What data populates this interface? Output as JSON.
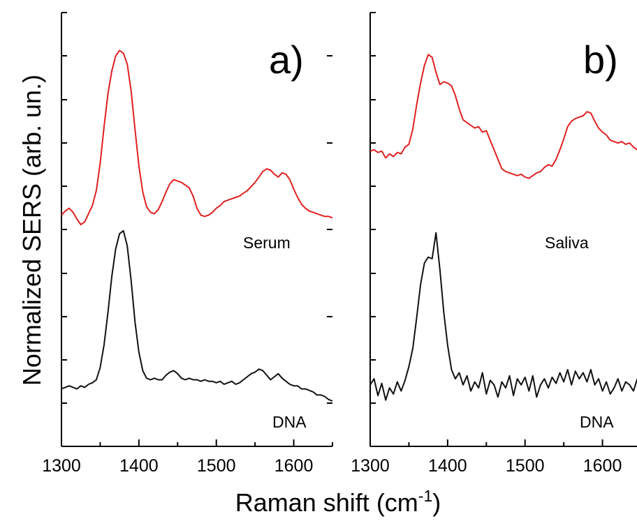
{
  "chart_data": [
    {
      "type": "line",
      "panel_label": "a)",
      "xlim": [
        1300,
        1650
      ],
      "x_ticks": [
        1300,
        1400,
        1500,
        1600
      ],
      "series": [
        {
          "name": "Serum",
          "color": "#e02020",
          "x": [
            1300,
            1305,
            1310,
            1315,
            1320,
            1325,
            1330,
            1335,
            1340,
            1345,
            1350,
            1355,
            1360,
            1365,
            1370,
            1375,
            1380,
            1385,
            1390,
            1395,
            1400,
            1405,
            1410,
            1415,
            1420,
            1425,
            1430,
            1435,
            1440,
            1445,
            1450,
            1455,
            1460,
            1465,
            1470,
            1475,
            1480,
            1485,
            1490,
            1495,
            1500,
            1505,
            1510,
            1515,
            1520,
            1525,
            1530,
            1535,
            1540,
            1545,
            1550,
            1555,
            1560,
            1565,
            1570,
            1575,
            1580,
            1585,
            1590,
            1595,
            1600,
            1605,
            1610,
            1615,
            1620,
            1625,
            1630,
            1635,
            1640,
            1645,
            1650
          ],
          "values": [
            0.07,
            0.1,
            0.12,
            0.09,
            0.04,
            0.0,
            0.02,
            0.08,
            0.14,
            0.25,
            0.45,
            0.72,
            0.96,
            1.13,
            1.24,
            1.28,
            1.26,
            1.18,
            0.98,
            0.7,
            0.43,
            0.24,
            0.13,
            0.09,
            0.08,
            0.11,
            0.17,
            0.24,
            0.3,
            0.33,
            0.32,
            0.31,
            0.29,
            0.27,
            0.21,
            0.12,
            0.07,
            0.06,
            0.07,
            0.09,
            0.12,
            0.14,
            0.17,
            0.18,
            0.19,
            0.2,
            0.21,
            0.23,
            0.25,
            0.28,
            0.31,
            0.35,
            0.39,
            0.41,
            0.4,
            0.37,
            0.35,
            0.38,
            0.37,
            0.33,
            0.26,
            0.2,
            0.15,
            0.12,
            0.1,
            0.09,
            0.08,
            0.07,
            0.06,
            0.06,
            0.05
          ]
        },
        {
          "name": "DNA",
          "color": "#111111",
          "x": [
            1300,
            1305,
            1310,
            1315,
            1320,
            1325,
            1330,
            1335,
            1340,
            1345,
            1350,
            1355,
            1360,
            1365,
            1370,
            1375,
            1380,
            1385,
            1390,
            1395,
            1400,
            1405,
            1410,
            1415,
            1420,
            1425,
            1430,
            1435,
            1440,
            1445,
            1450,
            1455,
            1460,
            1465,
            1470,
            1475,
            1480,
            1485,
            1490,
            1495,
            1500,
            1505,
            1510,
            1515,
            1520,
            1525,
            1530,
            1535,
            1540,
            1545,
            1550,
            1555,
            1560,
            1565,
            1570,
            1575,
            1580,
            1585,
            1590,
            1595,
            1600,
            1605,
            1610,
            1615,
            1620,
            1625,
            1630,
            1635,
            1640,
            1645,
            1650
          ],
          "values": [
            0.08,
            0.09,
            0.1,
            0.09,
            0.08,
            0.1,
            0.09,
            0.11,
            0.12,
            0.14,
            0.22,
            0.37,
            0.58,
            0.82,
            1.0,
            1.1,
            1.12,
            1.02,
            0.79,
            0.52,
            0.32,
            0.2,
            0.15,
            0.14,
            0.15,
            0.14,
            0.14,
            0.17,
            0.19,
            0.2,
            0.18,
            0.15,
            0.14,
            0.15,
            0.14,
            0.14,
            0.13,
            0.14,
            0.13,
            0.13,
            0.12,
            0.13,
            0.11,
            0.12,
            0.13,
            0.11,
            0.12,
            0.14,
            0.16,
            0.18,
            0.19,
            0.21,
            0.2,
            0.17,
            0.14,
            0.16,
            0.18,
            0.15,
            0.13,
            0.11,
            0.1,
            0.1,
            0.08,
            0.08,
            0.07,
            0.06,
            0.04,
            0.04,
            0.03,
            0.01,
            0.0
          ]
        }
      ]
    },
    {
      "type": "line",
      "panel_label": "b)",
      "xlim": [
        1300,
        1650
      ],
      "x_ticks": [
        1300,
        1400,
        1500,
        1600
      ],
      "series": [
        {
          "name": "Saliva",
          "color": "#e02020",
          "x": [
            1300,
            1305,
            1310,
            1315,
            1320,
            1325,
            1330,
            1335,
            1340,
            1345,
            1350,
            1355,
            1360,
            1365,
            1370,
            1375,
            1380,
            1385,
            1390,
            1395,
            1400,
            1405,
            1410,
            1415,
            1420,
            1425,
            1430,
            1435,
            1440,
            1445,
            1450,
            1455,
            1460,
            1465,
            1470,
            1475,
            1480,
            1485,
            1490,
            1495,
            1500,
            1505,
            1510,
            1515,
            1520,
            1525,
            1530,
            1535,
            1540,
            1545,
            1550,
            1555,
            1560,
            1565,
            1570,
            1575,
            1580,
            1585,
            1590,
            1595,
            1600,
            1605,
            1610,
            1615,
            1620,
            1625,
            1630,
            1635,
            1640,
            1645,
            1650
          ],
          "values": [
            0.54,
            0.55,
            0.53,
            0.54,
            0.49,
            0.52,
            0.5,
            0.53,
            0.52,
            0.57,
            0.59,
            0.7,
            0.88,
            1.04,
            1.17,
            1.25,
            1.23,
            1.12,
            1.03,
            1.05,
            1.04,
            1.02,
            0.95,
            0.85,
            0.77,
            0.75,
            0.73,
            0.71,
            0.72,
            0.68,
            0.69,
            0.62,
            0.55,
            0.48,
            0.41,
            0.39,
            0.38,
            0.37,
            0.36,
            0.37,
            0.35,
            0.34,
            0.36,
            0.38,
            0.39,
            0.42,
            0.44,
            0.43,
            0.48,
            0.55,
            0.63,
            0.72,
            0.76,
            0.78,
            0.79,
            0.8,
            0.83,
            0.82,
            0.76,
            0.71,
            0.68,
            0.66,
            0.62,
            0.61,
            0.6,
            0.61,
            0.59,
            0.6,
            0.57,
            0.55,
            0.5
          ]
        },
        {
          "name": "DNA",
          "color": "#111111",
          "x": [
            1300,
            1305,
            1310,
            1315,
            1320,
            1325,
            1330,
            1335,
            1340,
            1345,
            1350,
            1355,
            1360,
            1365,
            1370,
            1375,
            1380,
            1385,
            1390,
            1395,
            1400,
            1405,
            1410,
            1415,
            1420,
            1425,
            1430,
            1435,
            1440,
            1445,
            1450,
            1455,
            1460,
            1465,
            1470,
            1475,
            1480,
            1485,
            1490,
            1495,
            1500,
            1505,
            1510,
            1515,
            1520,
            1525,
            1530,
            1535,
            1540,
            1545,
            1550,
            1555,
            1560,
            1565,
            1570,
            1575,
            1580,
            1585,
            1590,
            1595,
            1600,
            1605,
            1610,
            1615,
            1620,
            1625,
            1630,
            1635,
            1640,
            1645,
            1650
          ],
          "values": [
            0.12,
            0.16,
            0.05,
            0.13,
            0.02,
            0.1,
            0.06,
            0.14,
            0.08,
            0.15,
            0.24,
            0.36,
            0.56,
            0.78,
            0.92,
            0.96,
            0.95,
            1.12,
            0.88,
            0.6,
            0.38,
            0.22,
            0.16,
            0.2,
            0.12,
            0.18,
            0.08,
            0.14,
            0.1,
            0.2,
            0.06,
            0.15,
            0.12,
            0.04,
            0.14,
            0.1,
            0.18,
            0.05,
            0.16,
            0.12,
            0.17,
            0.08,
            0.18,
            0.04,
            0.12,
            0.16,
            0.1,
            0.17,
            0.13,
            0.2,
            0.14,
            0.22,
            0.12,
            0.21,
            0.16,
            0.2,
            0.14,
            0.22,
            0.12,
            0.16,
            0.08,
            0.14,
            0.06,
            0.1,
            0.16,
            0.08,
            0.14,
            0.12,
            0.08,
            0.16,
            0.2
          ]
        }
      ]
    }
  ],
  "axes": {
    "xlabel_text": "Raman shift (cm",
    "xlabel_sup": "-1",
    "xlabel_end": ")",
    "ylabel": "Normalized SERS  (arb. un.)"
  }
}
